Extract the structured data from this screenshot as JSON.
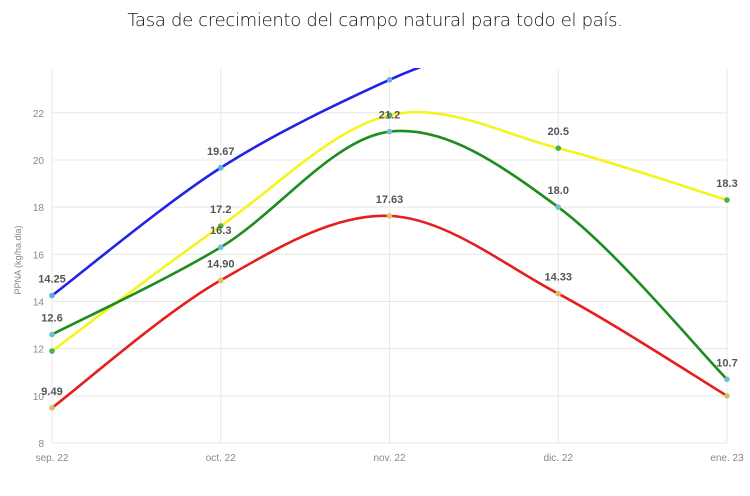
{
  "chart_data": {
    "type": "line",
    "title": "Tasa de crecimiento del campo natural para todo el país.",
    "ylabel": "PPNA (kg/ha.dia)",
    "xlabel": "",
    "categories": [
      "sep. 22",
      "oct. 22",
      "nov. 22",
      "dic. 22",
      "ene. 23"
    ],
    "ylim": [
      8,
      23.9
    ],
    "yticks": [
      8,
      10,
      12,
      14,
      16,
      18,
      20,
      22
    ],
    "grid": true,
    "legend": "none",
    "series": [
      {
        "color": "#2323e6",
        "values": [
          14.25,
          19.67,
          23.4,
          null,
          null
        ],
        "labels": [
          "14.25",
          "19.67",
          null,
          null,
          null
        ]
      },
      {
        "color": "#f5f51e",
        "values": [
          11.9,
          17.2,
          21.9,
          20.5,
          18.3
        ],
        "labels": [
          null,
          "17.2",
          null,
          "20.5",
          "18.3"
        ]
      },
      {
        "color": "#1e8c1e",
        "values": [
          12.6,
          16.3,
          21.2,
          18.0,
          10.7
        ],
        "labels": [
          "12.6",
          "16.3",
          "21.2",
          "18.0",
          "10.7"
        ]
      },
      {
        "color": "#e61e1e",
        "values": [
          9.49,
          14.9,
          17.63,
          14.33,
          10.0
        ],
        "labels": [
          "9.49",
          "14.90",
          "17.63",
          "14.33",
          null
        ]
      }
    ]
  }
}
